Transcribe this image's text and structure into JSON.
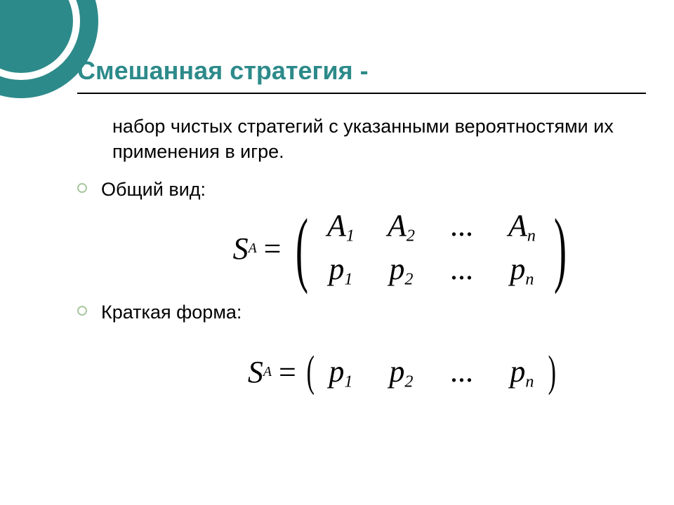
{
  "colors": {
    "accent": "#2d8a8a",
    "text": "#000000",
    "bullet_border": "#a8c8a0",
    "background": "#ffffff"
  },
  "typography": {
    "title_fontsize": 36,
    "body_fontsize": 27,
    "formula_fontsize_large": 44,
    "formula_fontsize_med": 44
  },
  "title": "Смешанная стратегия -",
  "definition": "набор чистых стратегий с указанными вероятностями их применения в игре.",
  "items": [
    {
      "label": "Общий вид:"
    },
    {
      "label": "Краткая форма:"
    }
  ],
  "formula1": {
    "lhs_base": "S",
    "lhs_sub": "A",
    "eq": "=",
    "rows": [
      [
        {
          "base": "A",
          "sub": "1"
        },
        {
          "base": "A",
          "sub": "2"
        },
        {
          "dots": "..."
        },
        {
          "base": "A",
          "sub": "n"
        }
      ],
      [
        {
          "base": "p",
          "sub": "1"
        },
        {
          "base": "p",
          "sub": "2"
        },
        {
          "dots": "..."
        },
        {
          "base": "p",
          "sub": "n"
        }
      ]
    ]
  },
  "formula2": {
    "lhs_base": "S",
    "lhs_sub": "A",
    "eq": "=",
    "row": [
      {
        "base": "p",
        "sub": "1"
      },
      {
        "base": "p",
        "sub": "2"
      },
      {
        "dots": "..."
      },
      {
        "base": "p",
        "sub": "n"
      }
    ]
  }
}
